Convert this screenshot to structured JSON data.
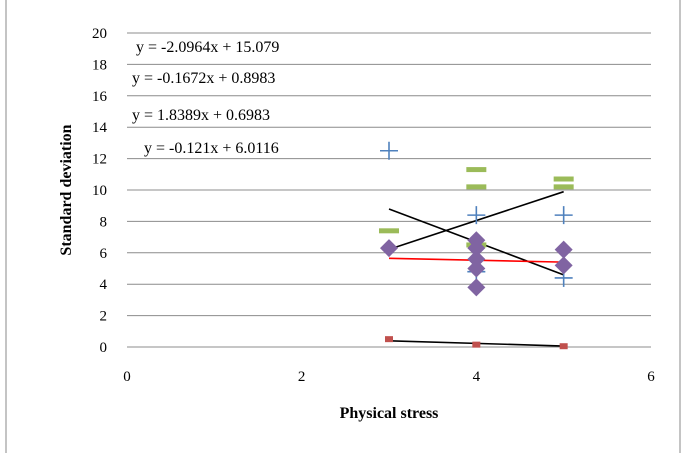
{
  "chart_data": {
    "type": "scatter",
    "title": "",
    "xlabel": "Physical stress",
    "ylabel": "Standard deviation",
    "xlim": [
      0,
      6
    ],
    "ylim": [
      0,
      20
    ],
    "xticks": [
      "0",
      "2",
      "4",
      "6"
    ],
    "yticks": [
      "0",
      "2",
      "4",
      "6",
      "8",
      "10",
      "12",
      "14",
      "16",
      "18",
      "20"
    ],
    "grid": "horizontal",
    "legend": "none",
    "series": [
      {
        "marker": "square-small",
        "color": "#c0504d",
        "points": [
          [
            3,
            0.5
          ],
          [
            4,
            0.15
          ],
          [
            5,
            0.05
          ]
        ]
      },
      {
        "marker": "dash",
        "color": "#9bbb59",
        "points": [
          [
            3,
            7.4
          ],
          [
            4,
            6.5
          ],
          [
            4,
            10.2
          ],
          [
            4,
            11.3
          ],
          [
            5,
            10.2
          ],
          [
            5,
            10.7
          ]
        ]
      },
      {
        "marker": "plus",
        "color": "#4f81bd",
        "points": [
          [
            3,
            12.5
          ],
          [
            4,
            8.4
          ],
          [
            4,
            4.8
          ],
          [
            5,
            8.4
          ],
          [
            5,
            4.4
          ]
        ]
      },
      {
        "marker": "diamond",
        "color": "#8064a2",
        "points": [
          [
            3,
            6.3
          ],
          [
            4,
            6.8
          ],
          [
            4,
            6.3
          ],
          [
            4,
            5.6
          ],
          [
            4,
            5.0
          ],
          [
            4,
            3.8
          ],
          [
            5,
            6.2
          ],
          [
            5,
            5.2
          ]
        ]
      }
    ],
    "trendlines": [
      {
        "color": "#000000",
        "slope": -2.0964,
        "intercept": 15.079,
        "x": [
          3,
          5
        ]
      },
      {
        "color": "#000000",
        "slope": -0.1672,
        "intercept": 0.8983,
        "x": [
          3,
          5
        ]
      },
      {
        "color": "#000000",
        "slope": 1.8389,
        "intercept": 0.6983,
        "x": [
          3,
          5
        ]
      },
      {
        "color": "#ff0000",
        "slope": -0.121,
        "intercept": 6.0116,
        "x": [
          3,
          5
        ]
      }
    ],
    "equations": [
      "y = -2.0964x + 15.079",
      "y = -0.1672x + 0.8983",
      "y = 1.8389x + 0.6983",
      "y = -0.121x + 6.0116"
    ]
  }
}
